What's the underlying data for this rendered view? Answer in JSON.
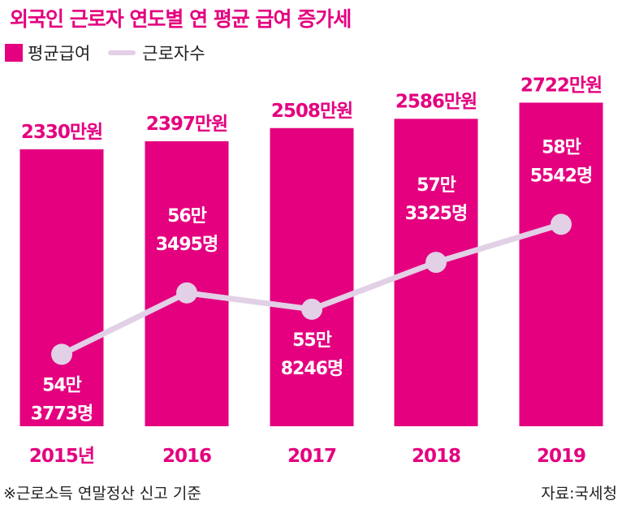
{
  "title": "외국인 근로자 연도별 연 평균 급여 증가세",
  "footnote": "※근로소득 연말정산 신고 기준",
  "source": "자료:국세청",
  "colors": {
    "bar": "#e4007f",
    "line": "#e2d0e6",
    "label_dark": "#222222",
    "label_light": "#ffffff"
  },
  "chart_data": {
    "type": "bar",
    "categories": [
      "2015년",
      "2016",
      "2017",
      "2018",
      "2019"
    ],
    "ylim": [
      0,
      2800
    ],
    "grid": false,
    "legend": "top-left",
    "series": [
      {
        "name": "평균급여",
        "type": "bar",
        "values": [
          2330,
          2397,
          2508,
          2586,
          2722
        ],
        "labels": [
          "2330만원",
          "2397만원",
          "2508만원",
          "2586만원",
          "2722만원"
        ]
      },
      {
        "name": "근로자수",
        "type": "line",
        "values": [
          543773,
          563495,
          558246,
          573325,
          585542
        ],
        "labels_top": [
          "54만",
          "56만",
          "55만",
          "57만",
          "58만"
        ],
        "labels_bottom": [
          "3773명",
          "3495명",
          "8246명",
          "3325명",
          "5542명"
        ]
      }
    ]
  }
}
